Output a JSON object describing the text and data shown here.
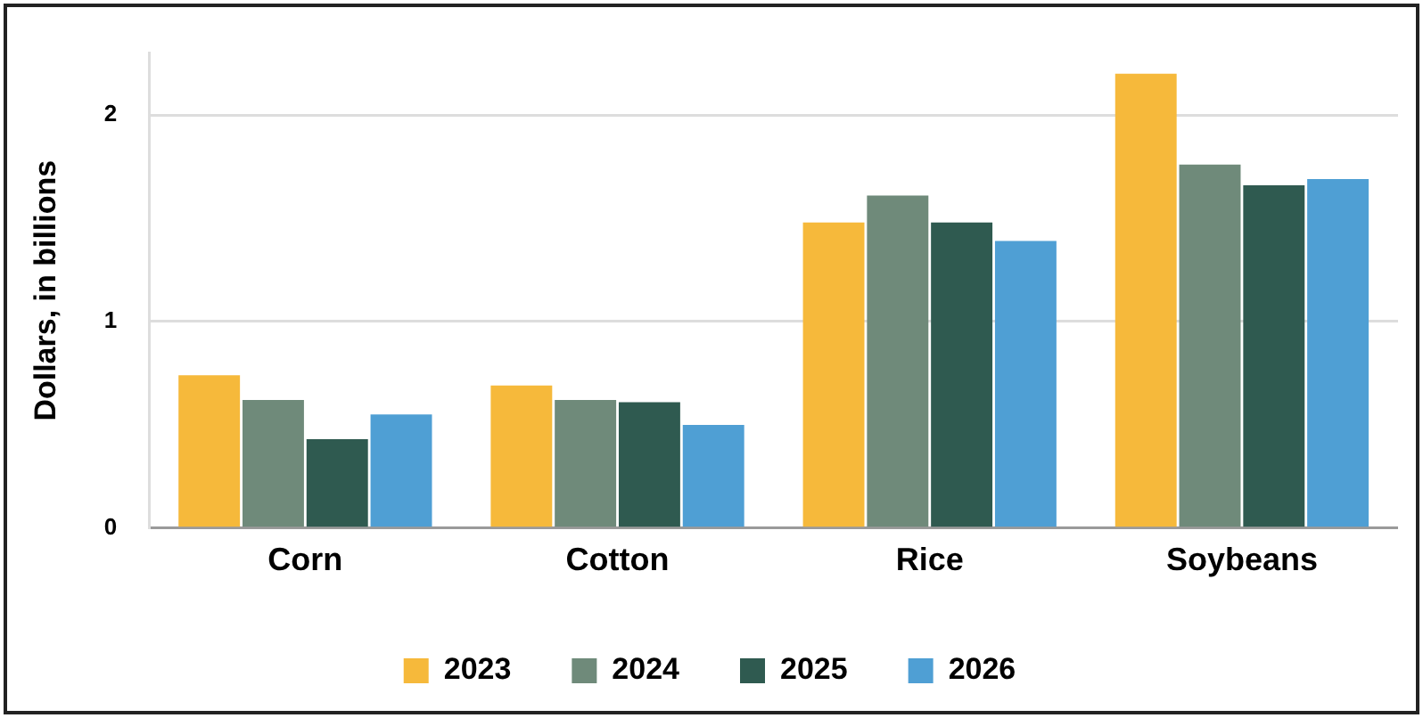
{
  "chart_data": {
    "type": "bar",
    "ylabel": "Dollars, in billions",
    "categories": [
      "Corn",
      "Cotton",
      "Rice",
      "Soybeans"
    ],
    "series": [
      {
        "name": "2023",
        "color": "#f6b93b",
        "values": [
          0.74,
          0.69,
          1.48,
          2.2
        ]
      },
      {
        "name": "2024",
        "color": "#6f8a7a",
        "values": [
          0.62,
          0.62,
          1.61,
          1.76
        ]
      },
      {
        "name": "2025",
        "color": "#2f5a50",
        "values": [
          0.43,
          0.61,
          1.48,
          1.66
        ]
      },
      {
        "name": "2026",
        "color": "#4f9fd4",
        "values": [
          0.55,
          0.5,
          1.39,
          1.69
        ]
      }
    ],
    "ylim": [
      0,
      2.3
    ],
    "yticks": [
      0,
      1,
      2
    ],
    "grid": "y",
    "legend": "bottom"
  }
}
